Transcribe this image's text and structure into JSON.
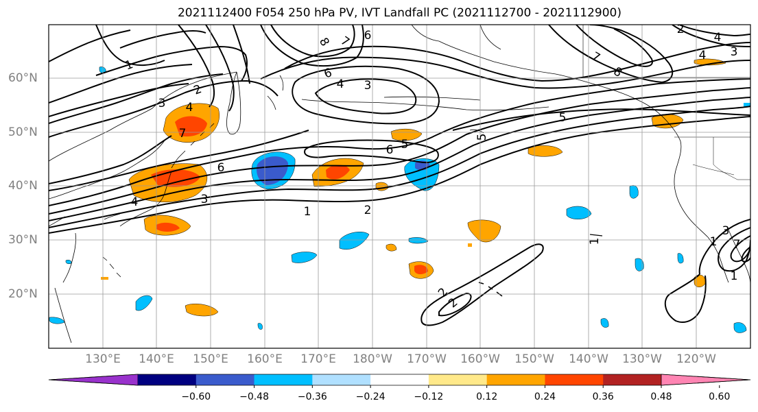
{
  "title": "2021112400 F054 250 hPa PV, IVT Landfall PC (2021112700 - 2021112900)",
  "lat_labels": [
    "60°N",
    "50°N",
    "40°N",
    "30°N",
    "20°N"
  ],
  "lon_labels": [
    "130°E",
    "140°E",
    "150°E",
    "160°E",
    "170°E",
    "180°W",
    "170°W",
    "160°W",
    "150°W",
    "140°W",
    "130°W",
    "120°W"
  ],
  "contour_labels": [
    "1",
    "2",
    "3",
    "4",
    "5",
    "6",
    "7",
    "8",
    "3",
    "4",
    "6",
    "7",
    "1",
    "2",
    "3",
    "4",
    "6",
    "5",
    "6",
    "2",
    "1",
    "3",
    "4",
    "5",
    "7",
    "8",
    "2",
    "4",
    "3",
    "7",
    "2",
    "1",
    "1"
  ],
  "colorbar": {
    "ticks": [
      "−0.60",
      "−0.48",
      "−0.36",
      "−0.24",
      "−0.12",
      "0.12",
      "0.24",
      "0.36",
      "0.48",
      "0.60"
    ],
    "colors": [
      "#9932CC",
      "#000080",
      "#3A5BCC",
      "#00BFFF",
      "#B0E0FF",
      "#FFFFFF",
      "#FFE98A",
      "#FFA500",
      "#FF4500",
      "#B22222",
      "#FF85B3"
    ]
  },
  "colors": {
    "grid": "#9a9a9a",
    "contour": "#000000",
    "coast": "#000000"
  }
}
